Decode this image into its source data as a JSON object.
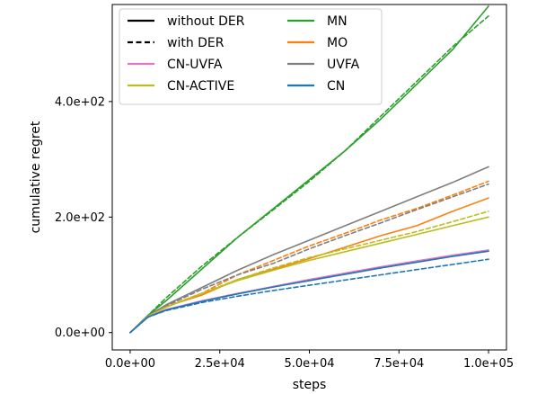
{
  "chart_data": {
    "type": "line",
    "title": "",
    "xlabel": "steps",
    "ylabel": "cumulative regret",
    "xlim": [
      -5000,
      105000
    ],
    "ylim": [
      -30,
      568
    ],
    "x_ticks": [
      0,
      25000,
      50000,
      75000,
      100000
    ],
    "x_tick_labels": [
      "0.0e+00",
      "2.5e+04",
      "5.0e+04",
      "7.5e+04",
      "1.0e+05"
    ],
    "y_ticks": [
      0,
      200,
      400
    ],
    "y_tick_labels": [
      "0.0e+00",
      "2.0e+02",
      "4.0e+02"
    ],
    "grid": false,
    "legend_position": "top-left",
    "legend": [
      {
        "label": "without DER",
        "color": "#000000",
        "dash": "solid"
      },
      {
        "label": "MN",
        "color": "#2ca02c",
        "dash": "solid"
      },
      {
        "label": "with DER",
        "color": "#000000",
        "dash": "dashed"
      },
      {
        "label": "MO",
        "color": "#ff7f0e",
        "dash": "solid"
      },
      {
        "label": "CN-UVFA",
        "color": "#e377c2",
        "dash": "solid"
      },
      {
        "label": "UVFA",
        "color": "#7f7f7f",
        "dash": "solid"
      },
      {
        "label": "CN-ACTIVE",
        "color": "#bcbd22",
        "dash": "solid"
      },
      {
        "label": "CN",
        "color": "#1f77b4",
        "dash": "solid"
      }
    ],
    "x": [
      0,
      5000,
      10000,
      20000,
      30000,
      40000,
      50000,
      60000,
      70000,
      80000,
      90000,
      100000
    ],
    "series": [
      {
        "name": "MN",
        "der": false,
        "color": "#2ca02c",
        "values": [
          0,
          30,
          55,
          110,
          165,
          215,
          265,
          315,
          370,
          430,
          490,
          565
        ]
      },
      {
        "name": "MN",
        "der": true,
        "color": "#2ca02c",
        "values": [
          0,
          30,
          60,
          115,
          165,
          213,
          262,
          315,
          375,
          435,
          495,
          548
        ]
      },
      {
        "name": "MO",
        "der": false,
        "color": "#ff7f0e",
        "values": [
          0,
          28,
          45,
          65,
          92,
          110,
          128,
          148,
          168,
          185,
          210,
          233
        ]
      },
      {
        "name": "MO",
        "der": true,
        "color": "#ff7f0e",
        "values": [
          0,
          28,
          45,
          68,
          100,
          125,
          150,
          172,
          195,
          215,
          238,
          262
        ]
      },
      {
        "name": "UVFA",
        "der": false,
        "color": "#7f7f7f",
        "values": [
          0,
          29,
          48,
          78,
          108,
          135,
          160,
          185,
          210,
          235,
          260,
          287
        ]
      },
      {
        "name": "UVFA",
        "der": true,
        "color": "#7f7f7f",
        "values": [
          0,
          29,
          46,
          75,
          100,
          120,
          145,
          168,
          190,
          213,
          235,
          257
        ]
      },
      {
        "name": "CN-ACTIVE",
        "der": false,
        "color": "#bcbd22",
        "values": [
          0,
          28,
          44,
          68,
          90,
          108,
          125,
          140,
          155,
          170,
          185,
          200
        ]
      },
      {
        "name": "CN-ACTIVE",
        "der": true,
        "color": "#bcbd22",
        "values": [
          0,
          28,
          44,
          68,
          92,
          112,
          130,
          145,
          160,
          175,
          192,
          210
        ]
      },
      {
        "name": "CN-UVFA",
        "der": false,
        "color": "#e377c2",
        "values": [
          0,
          27,
          40,
          55,
          68,
          80,
          92,
          103,
          114,
          124,
          134,
          143
        ]
      },
      {
        "name": "CN-UVFA",
        "der": true,
        "color": "#e377c2",
        "values": [
          0,
          27,
          40,
          54,
          67,
          79,
          91,
          102,
          112,
          122,
          132,
          141
        ]
      },
      {
        "name": "CN",
        "der": false,
        "color": "#1f77b4",
        "values": [
          0,
          27,
          39,
          54,
          67,
          79,
          90,
          101,
          112,
          122,
          132,
          141
        ]
      },
      {
        "name": "CN",
        "der": true,
        "color": "#1f77b4",
        "values": [
          0,
          27,
          38,
          52,
          63,
          73,
          82,
          91,
          100,
          109,
          118,
          127
        ]
      }
    ]
  }
}
